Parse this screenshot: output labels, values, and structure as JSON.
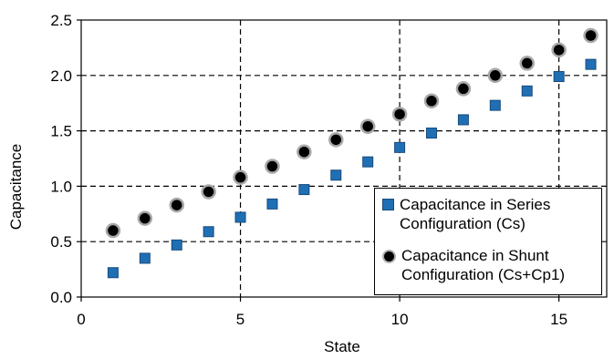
{
  "chart_data": {
    "type": "scatter",
    "xlabel": "State",
    "ylabel": "Capacitance",
    "xlim": [
      0,
      16.5
    ],
    "ylim": [
      0,
      2.5
    ],
    "x_ticks": [
      "0",
      "5",
      "10",
      "15"
    ],
    "y_ticks": [
      "0.0",
      "0.5",
      "1.0",
      "1.5",
      "2.0",
      "2.5"
    ],
    "grid": "dashed, at major ticks",
    "legend_position": "bottom-right",
    "series": [
      {
        "name": "Capacitance in Series Configuration (Cs)",
        "marker": "square",
        "color": "#1f6fb5",
        "x": [
          1,
          2,
          3,
          4,
          5,
          6,
          7,
          8,
          9,
          10,
          11,
          12,
          13,
          14,
          15,
          16
        ],
        "y": [
          0.22,
          0.35,
          0.47,
          0.59,
          0.72,
          0.84,
          0.97,
          1.1,
          1.22,
          1.35,
          1.48,
          1.6,
          1.73,
          1.86,
          1.99,
          2.1
        ]
      },
      {
        "name": "Capacitance in Shunt Configuration (Cs+Cp1)",
        "marker": "circle",
        "color": "#000000",
        "x": [
          1,
          2,
          3,
          4,
          5,
          6,
          7,
          8,
          9,
          10,
          11,
          12,
          13,
          14,
          15,
          16
        ],
        "y": [
          0.6,
          0.71,
          0.83,
          0.95,
          1.08,
          1.18,
          1.31,
          1.42,
          1.54,
          1.65,
          1.77,
          1.88,
          2.0,
          2.11,
          2.23,
          2.36
        ]
      }
    ]
  },
  "legend": {
    "series1": "Capacitance in Series\nConfiguration (Cs)",
    "series2": "Capacitance in Shunt\nConfiguration (Cs+Cp1)"
  }
}
